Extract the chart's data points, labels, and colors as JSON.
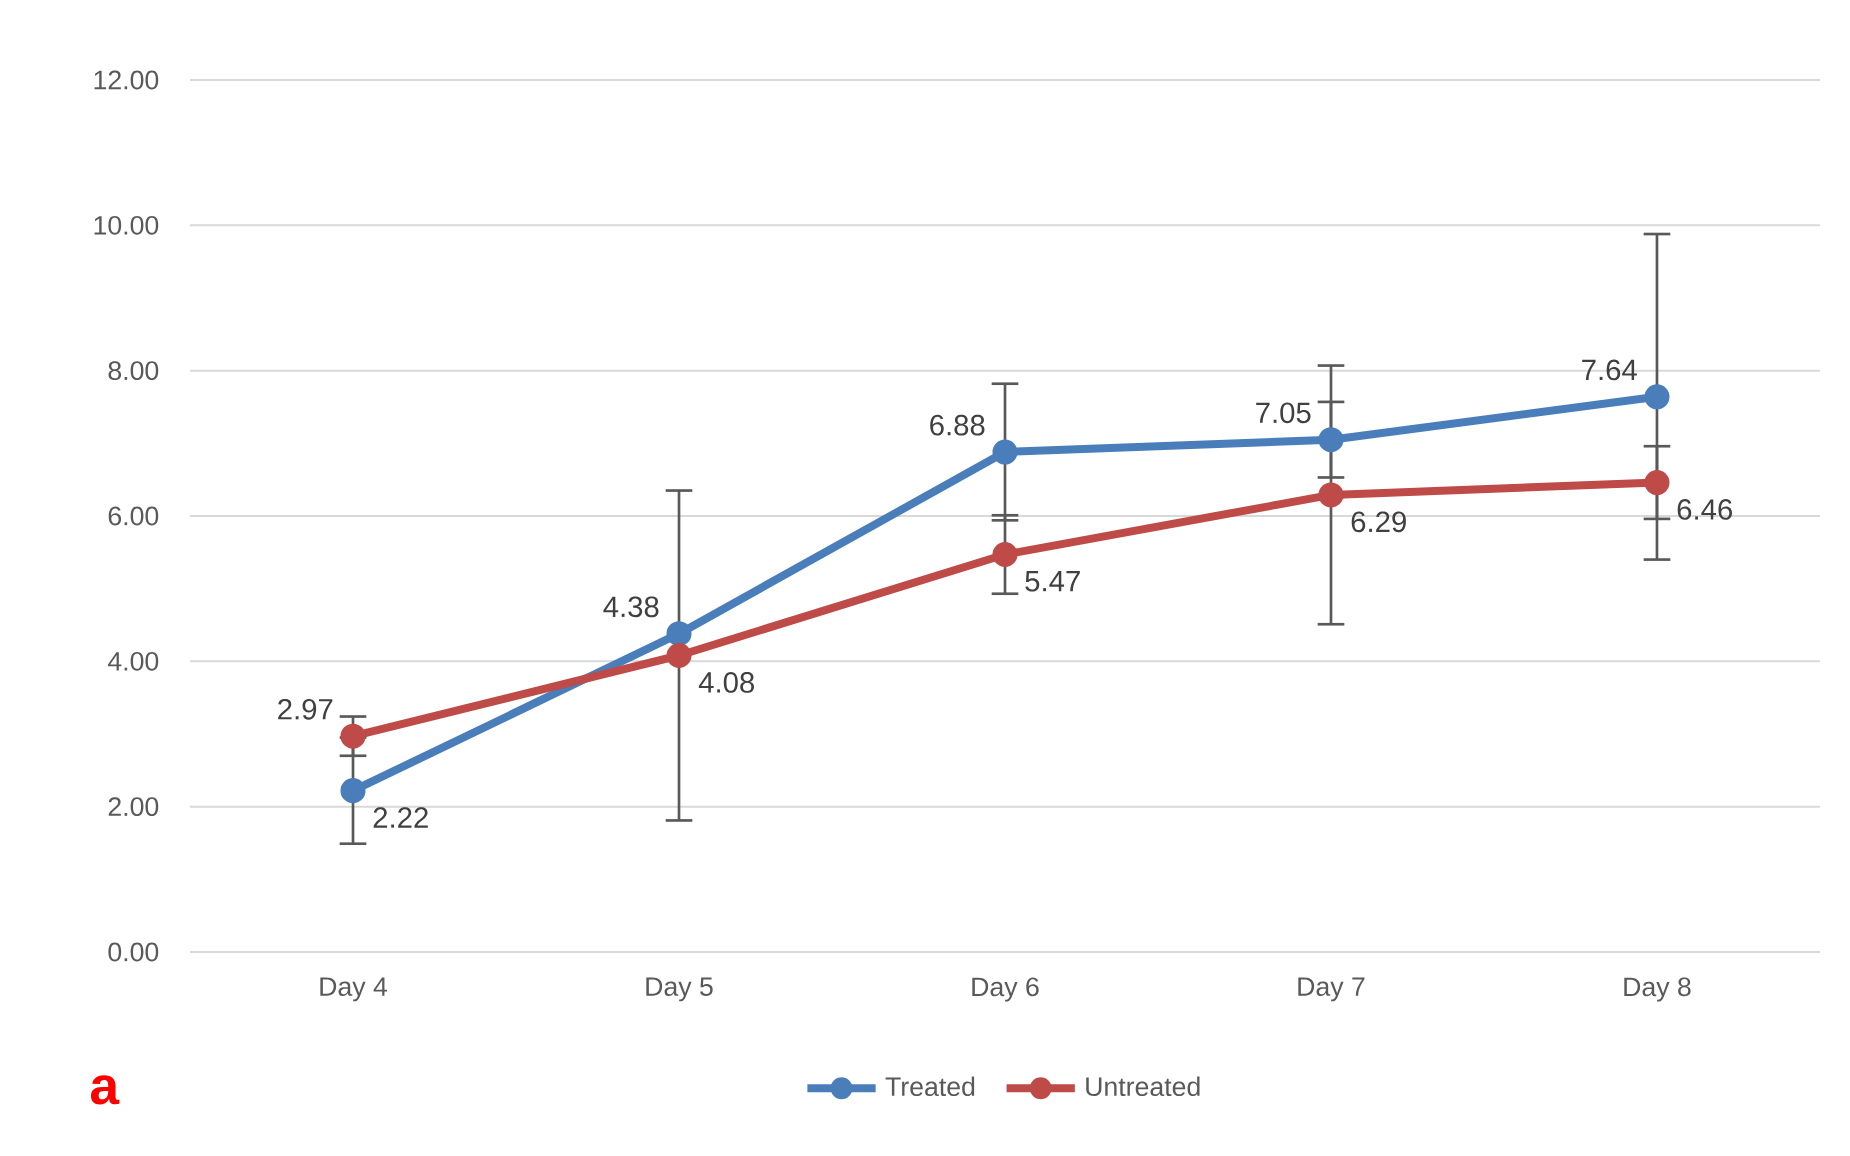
{
  "chart_data": {
    "type": "line",
    "categories": [
      "Day 4",
      "Day 5",
      "Day 6",
      "Day 7",
      "Day 8"
    ],
    "series": [
      {
        "name": "Treated",
        "color": "#4a7ebb",
        "values": [
          2.22,
          4.38,
          6.88,
          7.05,
          7.64
        ],
        "errors": [
          0.73,
          null,
          0.94,
          0.52,
          2.24
        ]
      },
      {
        "name": "Untreated",
        "color": "#be4b48",
        "values": [
          2.97,
          4.08,
          5.47,
          6.29,
          6.46
        ],
        "errors": [
          0.27,
          2.27,
          0.54,
          1.78,
          0.5
        ]
      }
    ],
    "ylim": [
      0,
      12
    ],
    "yticks": [
      {
        "value": 0,
        "label": "0.00"
      },
      {
        "value": 2,
        "label": "2.00"
      },
      {
        "value": 4,
        "label": "4.00"
      },
      {
        "value": 6,
        "label": "6.00"
      },
      {
        "value": 8,
        "label": "8.00"
      },
      {
        "value": 10,
        "label": "10.00"
      },
      {
        "value": 12,
        "label": "12.00"
      }
    ],
    "grid": "y",
    "legend": "bottom",
    "marker": "circle",
    "line_style": "solid",
    "data_labels": true,
    "annotations": [
      "a"
    ]
  }
}
